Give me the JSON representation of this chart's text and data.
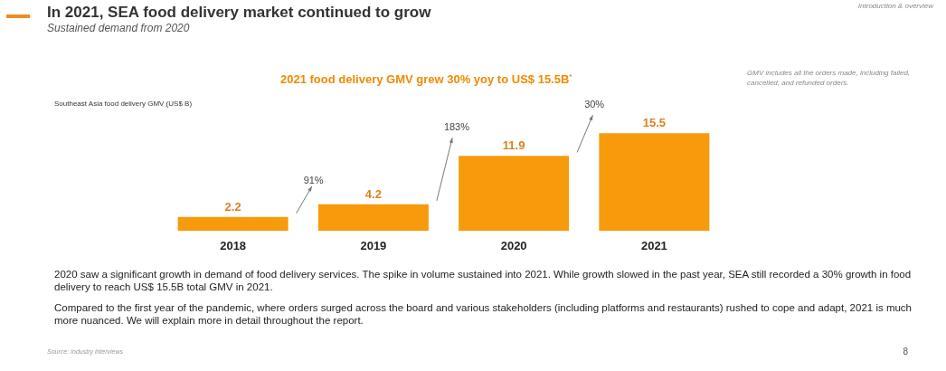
{
  "chart_data": {
    "type": "bar",
    "title": "In 2021, SEA food delivery market continued to grow",
    "subtitle": "Sustained demand from 2020",
    "ylabel": "Southeast Asia food delivery GMV (US$ B)",
    "categories": [
      "2018",
      "2019",
      "2020",
      "2021"
    ],
    "series": [
      {
        "name": "2021 food delivery GMV grew 30% yoy to US$ 15.5B$^{*}$",
        "color": "#f79a0c",
        "values": [
          2.2,
          4.2,
          11.9,
          15.5
        ]
      }
    ],
    "data_labels": true,
    "legend": "top",
    "annotations": [
      {
        "text": "91%"
      },
      {
        "text": "183%"
      },
      {
        "text": "30%"
      },
      "Introduction & overview",
      "GMV includes all the orders made, including failed, cancelled, and refunded orders.",
      "2020 saw a significant growth in demand of food delivery services. The spike in volume sustained into 2021. While growth slowed in the past year, SEA still recorded a 30% growth in food delivery to reach US$ 15.5B total GMV in 2021.",
      "Compared to the first year of the pandemic, where orders surged across the board and various stakeholders (including platforms and restaurants) rushed to cope and adapt, 2021 is much more nuanced. We will explain more in detail throughout the report.",
      "Source: Industry interviews",
      "8"
    ]
  }
}
